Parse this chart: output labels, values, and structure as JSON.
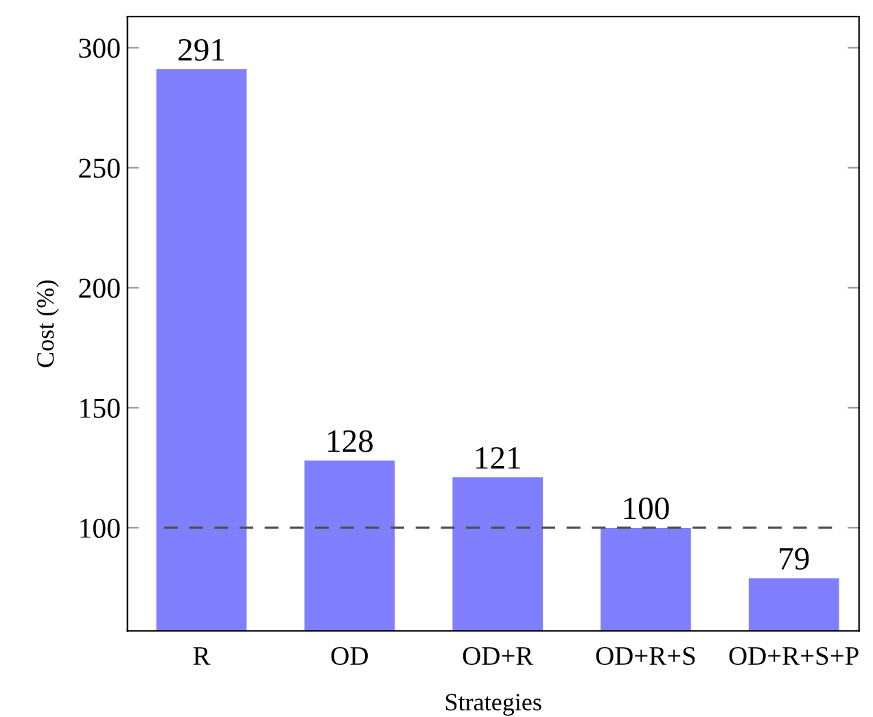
{
  "chart_data": {
    "type": "bar",
    "xlabel": "Strategies",
    "ylabel": "Cost (%)",
    "categories": [
      "R",
      "OD",
      "OD+R",
      "OD+R+S",
      "OD+R+S+P"
    ],
    "values": [
      291,
      128,
      121,
      100,
      79
    ],
    "color": "#8080ff",
    "ylim": [
      57,
      313
    ],
    "yticks": [
      100,
      150,
      200,
      250,
      300
    ],
    "grid": false,
    "data_labels": true,
    "ref_lines": [
      {
        "axis": "y",
        "value": 100,
        "color": "#4d4d4d",
        "line_style": "dashed"
      }
    ]
  }
}
